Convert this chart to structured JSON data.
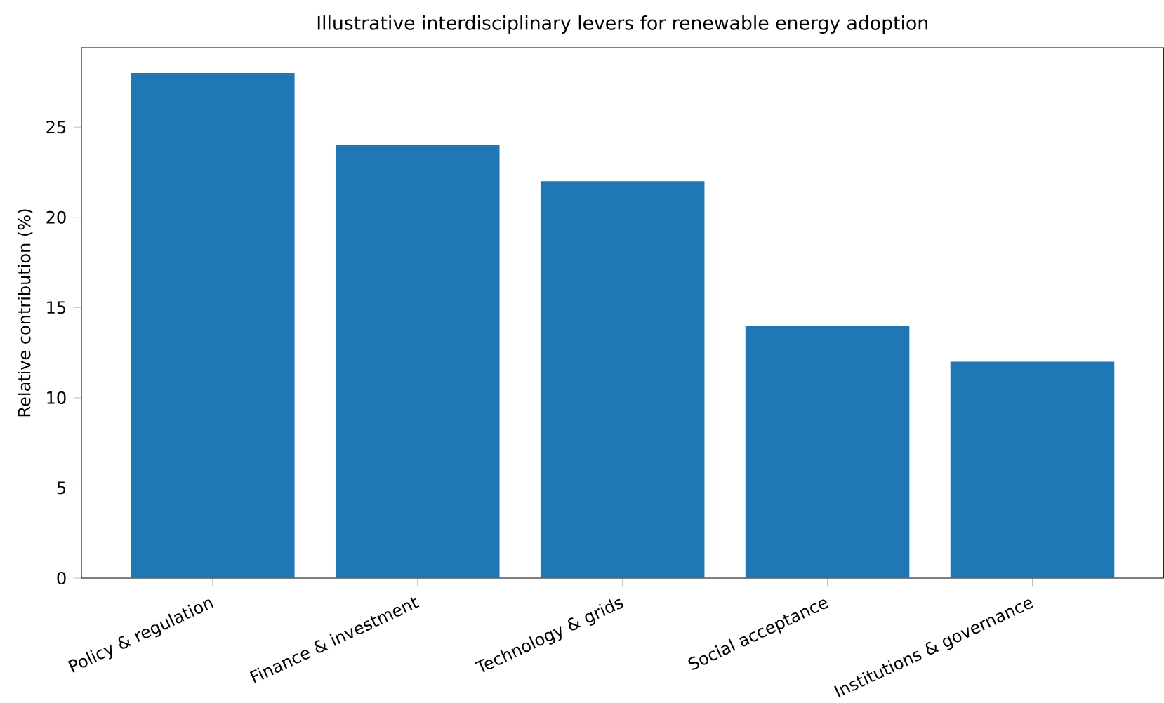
{
  "chart_data": {
    "type": "bar",
    "title": "Illustrative interdisciplinary levers for renewable energy adoption",
    "ylabel": "Relative contribution (%)",
    "categories": [
      "Policy & regulation",
      "Finance & investment",
      "Technology & grids",
      "Social acceptance",
      "Institutions & governance"
    ],
    "values": [
      28,
      24,
      22,
      14,
      12
    ],
    "color": "#1f77b4",
    "ylim": [
      0,
      29.4
    ],
    "yticks": [
      0,
      5,
      10,
      15,
      20,
      25
    ],
    "grid": false
  }
}
